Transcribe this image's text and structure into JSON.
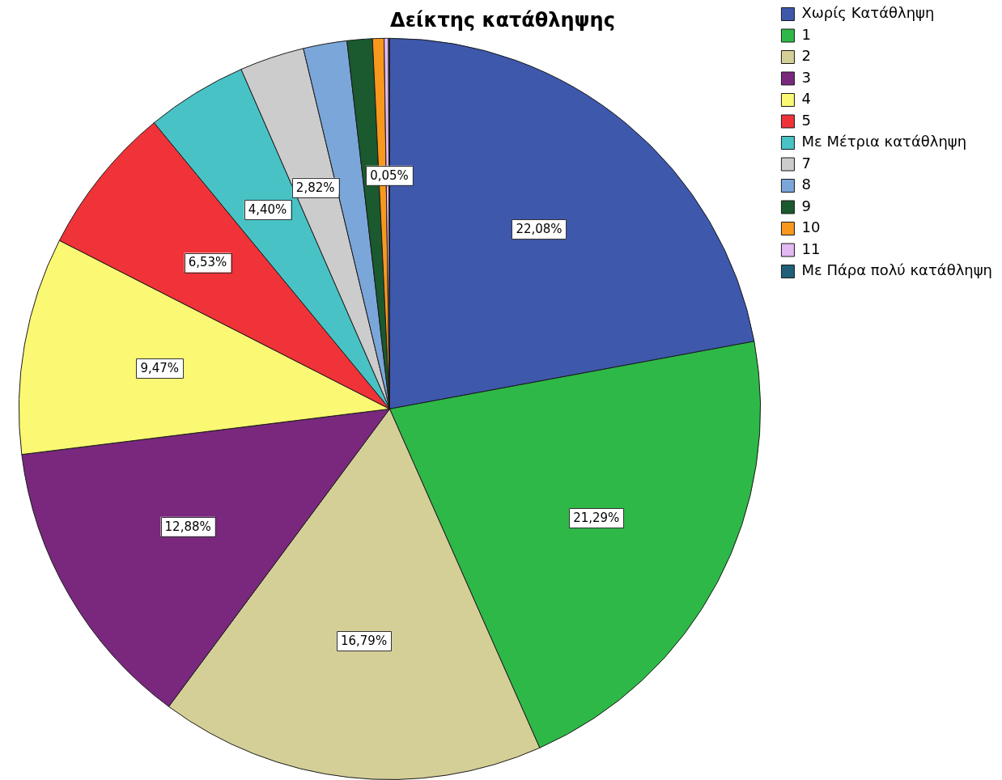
{
  "chart_data": {
    "type": "pie",
    "title": "Δείκτης κατάθληψης",
    "categories": [
      "Χωρίς Κατάθληψη",
      "1",
      "2",
      "3",
      "4",
      "5",
      "Με Μέτρια κατάθληψη",
      "7",
      "8",
      "9",
      "10",
      "11",
      "Με Πάρα πολύ κατάθληψη"
    ],
    "values": [
      22.08,
      21.29,
      16.79,
      12.88,
      9.47,
      6.53,
      4.4,
      2.82,
      1.9,
      1.1,
      0.5,
      0.19,
      0.05
    ],
    "value_labels": [
      "22,08%",
      "21,29%",
      "16,79%",
      "12,88%",
      "9,47%",
      "6,53%",
      "4,40%",
      "2,82%",
      null,
      null,
      null,
      null,
      "0,05%"
    ],
    "colors": [
      "#3e58ac",
      "#2eb848",
      "#d4cf97",
      "#79287e",
      "#fbf873",
      "#ef3338",
      "#48c2c5",
      "#cccccc",
      "#7ba6d9",
      "#1a5a2e",
      "#f8981d",
      "#e4b8f4",
      "#1f5f7a"
    ],
    "legend": "top right"
  }
}
